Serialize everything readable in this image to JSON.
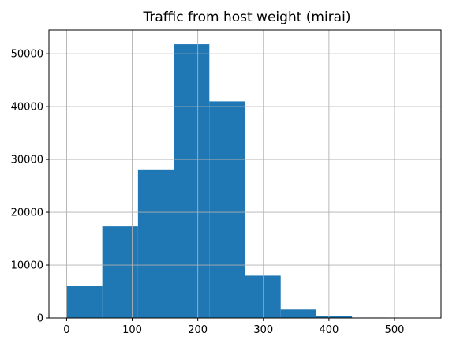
{
  "chart_data": {
    "type": "bar",
    "histogram": true,
    "title": "Traffic from host weight (mirai)",
    "xlabel": "",
    "ylabel": "",
    "bin_edges": [
      0,
      54.4,
      108.8,
      163.2,
      217.6,
      272,
      326.4,
      380.8,
      435.2,
      489.6,
      544
    ],
    "values": [
      6100,
      17300,
      28100,
      51800,
      41000,
      8000,
      1600,
      350,
      80,
      20
    ],
    "xlim": [
      -27,
      571
    ],
    "ylim": [
      0,
      54500
    ],
    "xticks": [
      "0",
      "100",
      "200",
      "300",
      "400",
      "500"
    ],
    "yticks": [
      "0",
      "10000",
      "20000",
      "30000",
      "40000",
      "50000"
    ],
    "grid": true,
    "colors": {
      "bar": "#1f77b4",
      "grid": "#b0b0b0",
      "axis": "#000000"
    }
  }
}
